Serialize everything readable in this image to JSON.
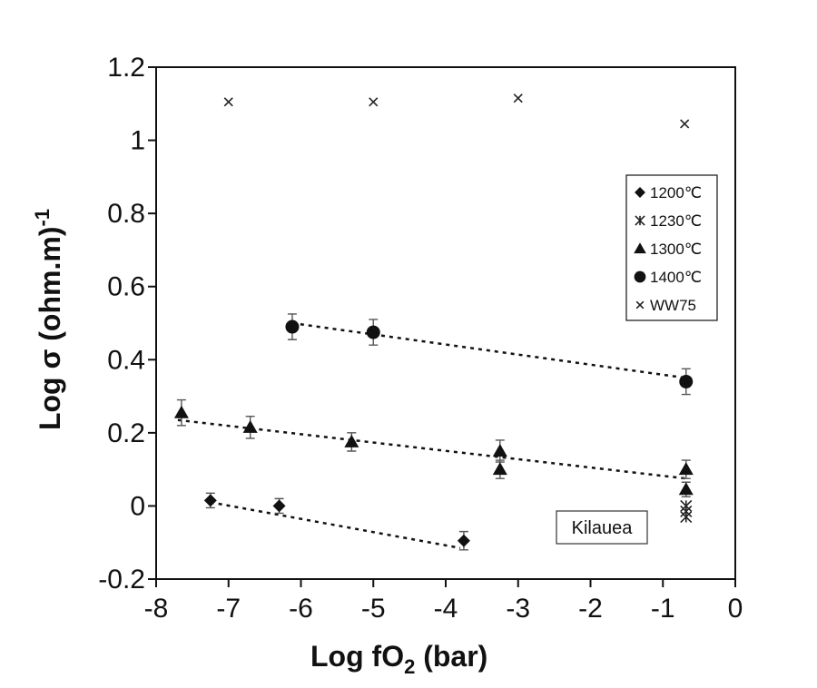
{
  "chart_data": {
    "type": "scatter",
    "xlabel_main": "Log fO",
    "xlabel_sub": "2",
    "xlabel_tail": " (bar)",
    "ylabel_main": "Log σ (ohm.m)",
    "ylabel_sup": "-1",
    "xlim": [
      -8,
      0
    ],
    "ylim": [
      -0.2,
      1.2
    ],
    "x_ticks": [
      {
        "value": -8,
        "label": "-8"
      },
      {
        "value": -7,
        "label": "-7"
      },
      {
        "value": -6,
        "label": "-6"
      },
      {
        "value": -5,
        "label": "-5"
      },
      {
        "value": -4,
        "label": "-4"
      },
      {
        "value": -3,
        "label": "-3"
      },
      {
        "value": -2,
        "label": "-2"
      },
      {
        "value": -1,
        "label": "-1"
      },
      {
        "value": 0,
        "label": "0"
      }
    ],
    "y_ticks": [
      {
        "value": -0.2,
        "label": "-0.2"
      },
      {
        "value": 0,
        "label": "0"
      },
      {
        "value": 0.2,
        "label": "0.2"
      },
      {
        "value": 0.4,
        "label": "0.4"
      },
      {
        "value": 0.6,
        "label": "0.6"
      },
      {
        "value": 0.8,
        "label": "0.8"
      },
      {
        "value": 1,
        "label": "1"
      },
      {
        "value": 1.2,
        "label": "1.2"
      }
    ],
    "grid": false,
    "legend_position": "upper-right",
    "series": [
      {
        "name": "1200℃",
        "marker": "diamond",
        "points": [
          {
            "x": -7.25,
            "y": 0.015,
            "err": 0.02
          },
          {
            "x": -6.3,
            "y": 0.0,
            "err": 0.02
          },
          {
            "x": -3.75,
            "y": -0.095,
            "err": 0.025
          }
        ],
        "fit": [
          [
            -7.25,
            0.01
          ],
          [
            -3.8,
            -0.115
          ]
        ]
      },
      {
        "name": "1230℃",
        "marker": "asterisk",
        "points": [
          {
            "x": -0.68,
            "y": 0.0,
            "err": 0.0
          },
          {
            "x": -0.68,
            "y": -0.015,
            "err": 0.0
          },
          {
            "x": -0.68,
            "y": -0.03,
            "err": 0.0
          }
        ]
      },
      {
        "name": "1300℃",
        "marker": "triangle",
        "points": [
          {
            "x": -7.65,
            "y": 0.255,
            "err": 0.035
          },
          {
            "x": -6.7,
            "y": 0.215,
            "err": 0.03
          },
          {
            "x": -5.3,
            "y": 0.175,
            "err": 0.025
          },
          {
            "x": -3.25,
            "y": 0.15,
            "err": 0.03
          },
          {
            "x": -3.25,
            "y": 0.1,
            "err": 0.025
          },
          {
            "x": -0.68,
            "y": 0.1,
            "err": 0.025
          },
          {
            "x": -0.68,
            "y": 0.045,
            "err": 0.02
          }
        ],
        "fit": [
          [
            -7.7,
            0.235
          ],
          [
            -0.68,
            0.075
          ]
        ]
      },
      {
        "name": "1400℃",
        "marker": "circle",
        "points": [
          {
            "x": -6.12,
            "y": 0.49,
            "err": 0.035
          },
          {
            "x": -5.0,
            "y": 0.475,
            "err": 0.035
          },
          {
            "x": -0.68,
            "y": 0.34,
            "err": 0.035
          }
        ],
        "fit": [
          [
            -6.12,
            0.5
          ],
          [
            -0.68,
            0.35
          ]
        ]
      },
      {
        "name": "WW75",
        "marker": "x",
        "points": [
          {
            "x": -7.0,
            "y": 1.105
          },
          {
            "x": -5.0,
            "y": 1.105
          },
          {
            "x": -3.0,
            "y": 1.115
          },
          {
            "x": -0.7,
            "y": 1.045
          }
        ]
      }
    ],
    "annotation": "Kilauea"
  }
}
